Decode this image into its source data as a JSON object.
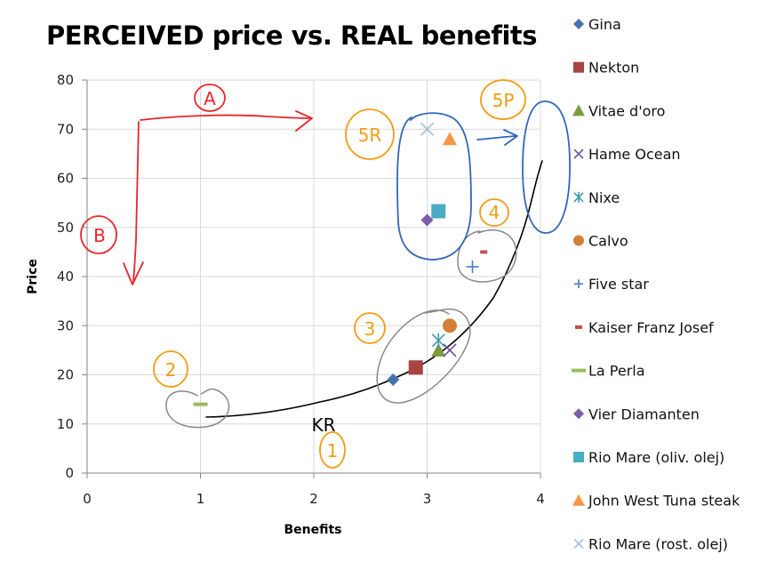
{
  "chart_data": {
    "type": "scatter",
    "title": "PERCEIVED price vs. REAL benefits",
    "xlabel": "Benefits",
    "ylabel": "Price",
    "xlim": [
      0,
      4
    ],
    "ylim": [
      0,
      80
    ],
    "x_ticks": [
      "0",
      "1",
      "2",
      "3",
      "4"
    ],
    "y_ticks": [
      "0",
      "10",
      "20",
      "30",
      "40",
      "50",
      "60",
      "70",
      "80"
    ],
    "grid": true,
    "legend_position": "right",
    "series": [
      {
        "name": "Gina",
        "marker": "diamond",
        "color": "#4472a8",
        "x": 2.7,
        "y": 19
      },
      {
        "name": "Nekton",
        "marker": "square",
        "color": "#a94442",
        "x": 2.9,
        "y": 21.5
      },
      {
        "name": "Vitae d'oro",
        "marker": "triangle",
        "color": "#7f9a3f",
        "x": 3.1,
        "y": 25
      },
      {
        "name": "Hame Ocean",
        "marker": "x",
        "color": "#6f4f95",
        "x": 3.2,
        "y": 25
      },
      {
        "name": "Nixe",
        "marker": "star",
        "color": "#3d9aaa",
        "x": 3.1,
        "y": 27
      },
      {
        "name": "Calvo",
        "marker": "circle",
        "color": "#d2803a",
        "x": 3.2,
        "y": 30
      },
      {
        "name": "Five star",
        "marker": "plus",
        "color": "#4a7cc0",
        "x": 3.4,
        "y": 42
      },
      {
        "name": "Kaiser Franz Josef",
        "marker": "dash",
        "color": "#c0504d",
        "x": 3.5,
        "y": 45
      },
      {
        "name": "La Perla",
        "marker": "long-dash",
        "color": "#9bbb59",
        "x": 1.0,
        "y": 14
      },
      {
        "name": "Vier Diamanten",
        "marker": "diamond",
        "color": "#7e5ca8",
        "x": 3.0,
        "y": 51.5
      },
      {
        "name": "Rio Mare (oliv. olej)",
        "marker": "square",
        "color": "#4bacc6",
        "x": 3.1,
        "y": 53.3
      },
      {
        "name": "John West Tuna steak",
        "marker": "triangle",
        "color": "#f79646",
        "x": 3.2,
        "y": 68
      },
      {
        "name": "Rio Mare (rost. olej)",
        "marker": "x",
        "color": "#a9bcd8",
        "x": 3.0,
        "y": 70
      }
    ],
    "annotations": {
      "labels": [
        {
          "text": "A",
          "color": "#e8262a"
        },
        {
          "text": "B",
          "color": "#e8262a"
        },
        {
          "text": "1",
          "color": "#f39c12"
        },
        {
          "text": "2",
          "color": "#f39c12"
        },
        {
          "text": "3",
          "color": "#f39c12"
        },
        {
          "text": "4",
          "color": "#f39c12"
        },
        {
          "text": "5R",
          "color": "#f39c12"
        },
        {
          "text": "5P",
          "color": "#f39c12"
        },
        {
          "text": "KR",
          "color": "#000000"
        }
      ],
      "curve_name": "KR"
    }
  }
}
